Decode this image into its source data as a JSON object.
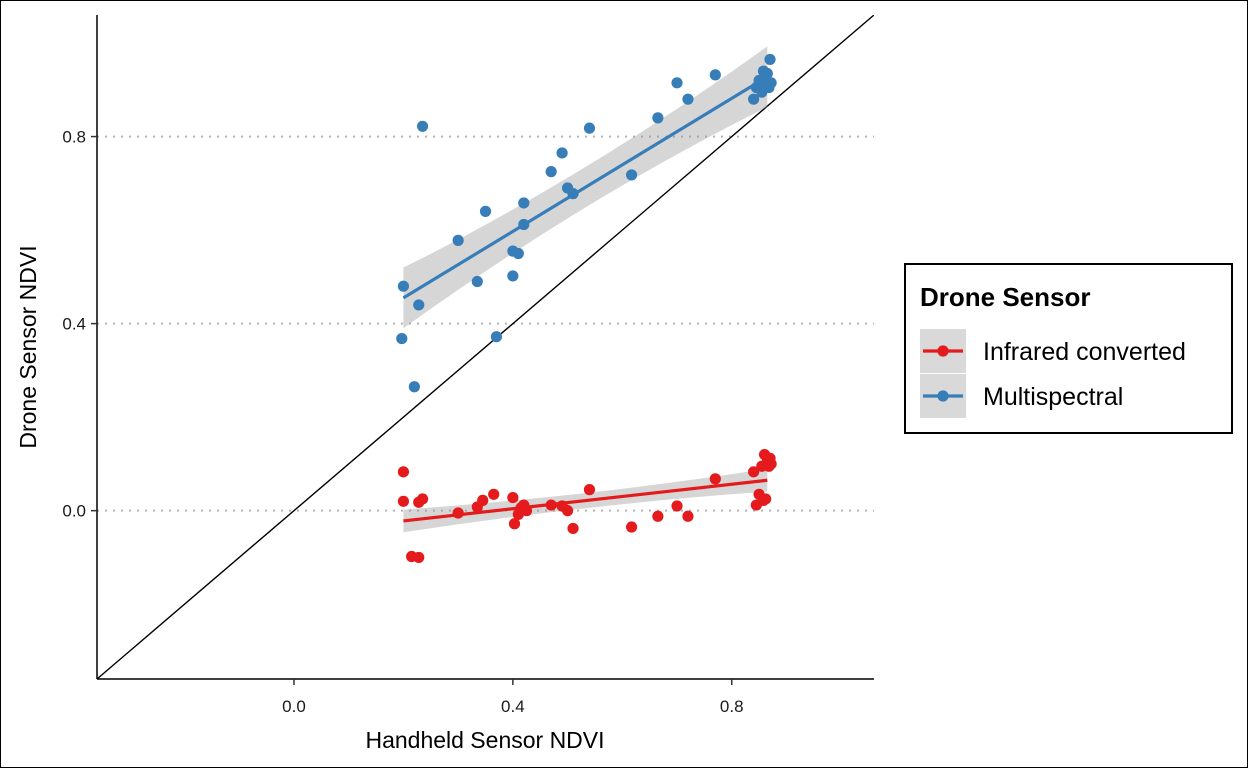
{
  "chart_data": {
    "type": "scatter",
    "xlabel": "Handheld Sensor NDVI",
    "ylabel": "Drone Sensor NDVI",
    "xlim": [
      -0.36,
      1.06
    ],
    "ylim": [
      -0.36,
      1.06
    ],
    "x_ticks": [
      {
        "value": 0.0,
        "label": "0.0"
      },
      {
        "value": 0.4,
        "label": "0.4"
      },
      {
        "value": 0.8,
        "label": "0.8"
      }
    ],
    "y_ticks": [
      {
        "value": 0.0,
        "label": "0.0"
      },
      {
        "value": 0.4,
        "label": "0.4"
      },
      {
        "value": 0.8,
        "label": "0.8"
      }
    ],
    "grid": "horizontal-dotted-major",
    "reference_line": "y = x",
    "legend": {
      "title": "Drone Sensor",
      "position": "right",
      "entries": [
        "Infrared converted",
        "Multispectral"
      ]
    },
    "series": [
      {
        "name": "Infrared converted",
        "color": "#e41a1c",
        "trend": {
          "x0": 0.2,
          "y0": -0.022,
          "x1": 0.865,
          "y1": 0.065
        },
        "ci_halfwidth": 0.018,
        "points": [
          [
            0.2,
            0.083
          ],
          [
            0.2,
            0.02
          ],
          [
            0.215,
            -0.098
          ],
          [
            0.228,
            -0.1
          ],
          [
            0.228,
            0.018
          ],
          [
            0.235,
            0.025
          ],
          [
            0.3,
            -0.005
          ],
          [
            0.335,
            0.008
          ],
          [
            0.345,
            0.022
          ],
          [
            0.365,
            0.035
          ],
          [
            0.4,
            0.028
          ],
          [
            0.403,
            -0.028
          ],
          [
            0.41,
            -0.008
          ],
          [
            0.415,
            0.006
          ],
          [
            0.42,
            0.012
          ],
          [
            0.425,
            0.0
          ],
          [
            0.47,
            0.012
          ],
          [
            0.49,
            0.01
          ],
          [
            0.5,
            0.0
          ],
          [
            0.51,
            -0.038
          ],
          [
            0.54,
            0.045
          ],
          [
            0.617,
            -0.035
          ],
          [
            0.665,
            -0.012
          ],
          [
            0.7,
            0.01
          ],
          [
            0.72,
            -0.012
          ],
          [
            0.77,
            0.068
          ],
          [
            0.84,
            0.083
          ],
          [
            0.845,
            0.012
          ],
          [
            0.85,
            0.035
          ],
          [
            0.855,
            0.095
          ],
          [
            0.858,
            0.022
          ],
          [
            0.86,
            0.12
          ],
          [
            0.862,
            0.025
          ],
          [
            0.865,
            0.105
          ],
          [
            0.868,
            0.095
          ],
          [
            0.87,
            0.112
          ],
          [
            0.872,
            0.1
          ]
        ]
      },
      {
        "name": "Multispectral",
        "color": "#377eb8",
        "trend": {
          "x0": 0.2,
          "y0": 0.455,
          "x1": 0.865,
          "y1": 0.928
        },
        "ci_halfwidth": 0.048,
        "points": [
          [
            0.197,
            0.368
          ],
          [
            0.2,
            0.48
          ],
          [
            0.22,
            0.265
          ],
          [
            0.228,
            0.44
          ],
          [
            0.235,
            0.822
          ],
          [
            0.3,
            0.578
          ],
          [
            0.335,
            0.49
          ],
          [
            0.35,
            0.64
          ],
          [
            0.37,
            0.372
          ],
          [
            0.4,
            0.502
          ],
          [
            0.4,
            0.555
          ],
          [
            0.41,
            0.55
          ],
          [
            0.42,
            0.612
          ],
          [
            0.42,
            0.658
          ],
          [
            0.47,
            0.725
          ],
          [
            0.49,
            0.765
          ],
          [
            0.5,
            0.69
          ],
          [
            0.51,
            0.678
          ],
          [
            0.54,
            0.818
          ],
          [
            0.617,
            0.718
          ],
          [
            0.665,
            0.84
          ],
          [
            0.7,
            0.915
          ],
          [
            0.72,
            0.88
          ],
          [
            0.77,
            0.932
          ],
          [
            0.84,
            0.88
          ],
          [
            0.845,
            0.905
          ],
          [
            0.85,
            0.92
          ],
          [
            0.855,
            0.895
          ],
          [
            0.858,
            0.94
          ],
          [
            0.86,
            0.91
          ],
          [
            0.862,
            0.925
          ],
          [
            0.865,
            0.935
          ],
          [
            0.868,
            0.905
          ],
          [
            0.87,
            0.965
          ],
          [
            0.872,
            0.915
          ]
        ]
      }
    ]
  }
}
